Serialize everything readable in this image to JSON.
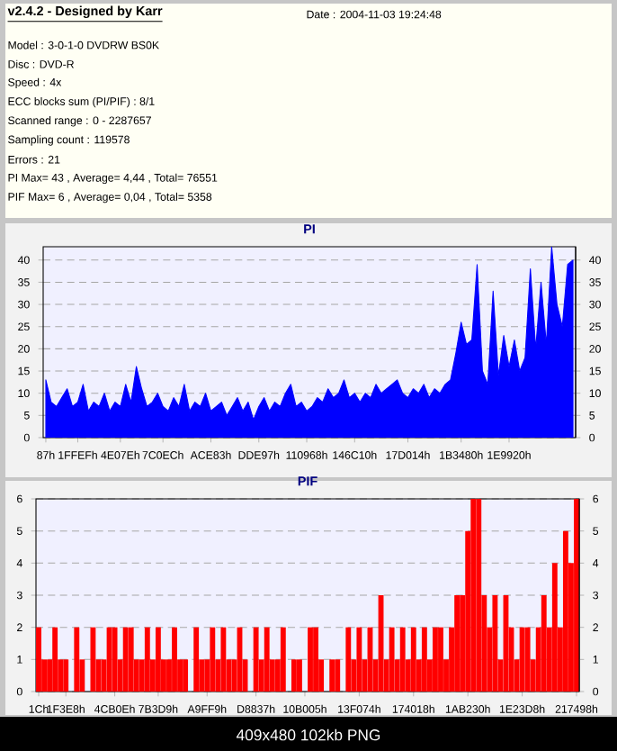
{
  "chart_data": [
    {
      "type": "other",
      "title": "v2.4.2 - Designed by Karr",
      "annotations": [
        "Date : 2004-11-03 19:24:48",
        "Model : 3-0-1-0 DVDRW BS0K",
        "Disc : DVD-R",
        "Speed : 4x",
        "ECC blocks sum (PI/PIF) : 8/1",
        "Scanned range : 0 - 2287657",
        "Sampling count : 119578",
        "Errors : 21",
        "PI Max= 43 , Average= 4,44 , Total= 76551",
        "PIF Max= 6 , Average= 0,04 , Total= 5358",
        "409x480 102kb PNG"
      ]
    },
    {
      "type": "area",
      "title": "PI",
      "color": "#0000ff",
      "grid": "y",
      "categories": [
        "87h",
        null,
        null,
        null,
        null,
        null,
        "1FFEFh",
        null,
        null,
        null,
        null,
        null,
        null,
        null,
        "4E07Eh",
        null,
        null,
        null,
        null,
        null,
        null,
        null,
        "7C0ECh",
        null,
        null,
        null,
        null,
        null,
        null,
        null,
        null,
        "ACE83h",
        null,
        null,
        null,
        null,
        null,
        null,
        null,
        null,
        "DDE97h",
        null,
        null,
        null,
        null,
        null,
        null,
        null,
        null,
        "110968h",
        null,
        null,
        null,
        null,
        null,
        null,
        null,
        null,
        "146C10h",
        null,
        null,
        null,
        null,
        null,
        null,
        null,
        null,
        null,
        "17D014h",
        null,
        null,
        null,
        null,
        null,
        null,
        null,
        null,
        null,
        "1B3480h",
        null,
        null,
        null,
        null,
        null,
        null,
        null,
        null,
        "1E9920h",
        null,
        null,
        null,
        null,
        null,
        null,
        null,
        null,
        null,
        null,
        null,
        null
      ],
      "values": [
        13,
        8,
        7,
        9,
        11,
        7,
        8,
        12,
        6,
        8,
        7,
        10,
        6,
        8,
        7,
        12,
        8,
        16,
        11,
        7,
        8,
        10,
        7,
        6,
        9,
        7,
        12,
        6,
        8,
        7,
        10,
        6,
        7,
        8,
        5,
        7,
        9,
        6,
        8,
        4,
        7,
        9,
        6,
        8,
        7,
        10,
        12,
        7,
        8,
        6,
        7,
        9,
        8,
        11,
        9,
        10,
        13,
        9,
        10,
        8,
        10,
        9,
        12,
        10,
        11,
        12,
        13,
        10,
        9,
        11,
        10,
        12,
        9,
        11,
        10,
        12,
        13,
        19,
        26,
        21,
        22,
        39,
        15,
        12,
        33,
        14,
        23,
        16,
        22,
        15,
        18,
        38,
        20,
        35,
        21,
        43,
        30,
        25,
        39,
        40
      ],
      "ylim": [
        0,
        43
      ],
      "yticks": [
        0,
        5,
        10,
        15,
        20,
        25,
        30,
        35,
        40
      ],
      "y2lim": [
        0,
        43
      ],
      "y2ticks": [
        0,
        5,
        10,
        15,
        20,
        25,
        30,
        35,
        40
      ]
    },
    {
      "type": "bar",
      "title": "PIF",
      "color": "#ff0000",
      "grid": "y",
      "categories": [
        "1Ch",
        null,
        null,
        null,
        null,
        "1F3E8h",
        null,
        null,
        null,
        null,
        null,
        null,
        null,
        null,
        "4CB0Eh",
        null,
        null,
        null,
        null,
        null,
        null,
        null,
        "7B3D9h",
        null,
        null,
        null,
        null,
        null,
        null,
        null,
        null,
        "A9FF9h",
        null,
        null,
        null,
        null,
        null,
        null,
        null,
        null,
        "D8837h",
        null,
        null,
        null,
        null,
        null,
        null,
        null,
        null,
        "10B005h",
        null,
        null,
        null,
        null,
        null,
        null,
        null,
        null,
        null,
        "13F074h",
        null,
        null,
        null,
        null,
        null,
        null,
        null,
        null,
        null,
        "174018h",
        null,
        null,
        null,
        null,
        null,
        null,
        null,
        null,
        null,
        "1AB230h",
        null,
        null,
        null,
        null,
        null,
        null,
        null,
        null,
        null,
        "1E23D8h",
        null,
        null,
        null,
        null,
        null,
        null,
        null,
        null,
        null,
        "217498h"
      ],
      "values": [
        2,
        1,
        1,
        2,
        1,
        1,
        0,
        2,
        1,
        0,
        2,
        1,
        1,
        2,
        2,
        1,
        2,
        2,
        1,
        1,
        2,
        1,
        2,
        1,
        1,
        2,
        1,
        1,
        0,
        2,
        1,
        1,
        2,
        1,
        2,
        1,
        1,
        2,
        1,
        0,
        2,
        1,
        2,
        1,
        1,
        2,
        0,
        1,
        1,
        0,
        2,
        2,
        1,
        0,
        1,
        1,
        0,
        2,
        1,
        2,
        1,
        2,
        1,
        3,
        1,
        2,
        1,
        2,
        1,
        2,
        1,
        2,
        1,
        2,
        2,
        1,
        2,
        3,
        3,
        5,
        6,
        6,
        3,
        2,
        3,
        1,
        3,
        2,
        1,
        2,
        2,
        1,
        2,
        3,
        2,
        4,
        2,
        5,
        4,
        6
      ],
      "ylim": [
        0,
        6
      ],
      "yticks": [
        0,
        1,
        2,
        3,
        4,
        5,
        6
      ],
      "y2lim": [
        0,
        6
      ],
      "y2ticks": [
        0,
        1,
        2,
        3,
        4,
        5,
        6
      ]
    }
  ]
}
